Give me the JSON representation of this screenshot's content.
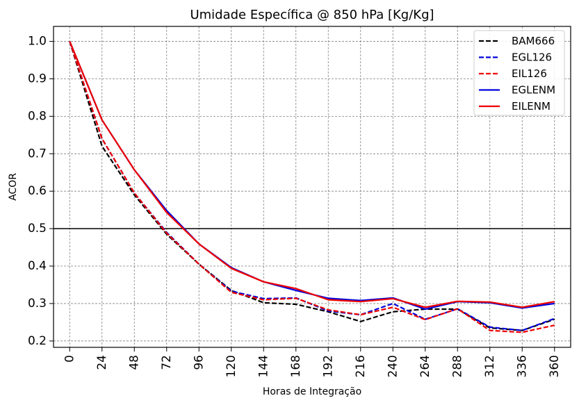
{
  "chart_data": {
    "type": "line",
    "title": "Umidade Específica @ 850 hPa [Kg/Kg]",
    "xlabel": "Horas de Integração",
    "ylabel": "ACOR",
    "x": [
      0,
      24,
      48,
      72,
      96,
      120,
      144,
      168,
      192,
      216,
      240,
      264,
      288,
      312,
      336,
      360
    ],
    "x_tick_labels": [
      "0",
      "24",
      "48",
      "72",
      "96",
      "120",
      "144",
      "168",
      "192",
      "216",
      "240",
      "264",
      "288",
      "312",
      "336",
      "360"
    ],
    "y_ticks": [
      0.2,
      0.3,
      0.4,
      0.5,
      0.6,
      0.7,
      0.8,
      0.9,
      1.0
    ],
    "y_tick_labels": [
      "0.2",
      "0.3",
      "0.4",
      "0.5",
      "0.6",
      "0.7",
      "0.8",
      "0.9",
      "1.0"
    ],
    "xlim": [
      -12,
      372
    ],
    "ylim": [
      0.183,
      1.04
    ],
    "grid": true,
    "reference_line": 0.5,
    "reference_color": "#000000",
    "legend_position": "top-right",
    "series": [
      {
        "name": "BAM666",
        "color": "#000000",
        "dash": "dashed",
        "values": [
          1.0,
          0.72,
          0.59,
          0.485,
          0.405,
          0.335,
          0.302,
          0.298,
          0.278,
          0.252,
          0.278,
          0.285,
          0.285,
          0.235,
          0.228,
          0.258
        ]
      },
      {
        "name": "EGL126",
        "color": "#0000dd",
        "dash": "dashed",
        "values": [
          1.0,
          0.74,
          0.595,
          0.49,
          0.405,
          0.333,
          0.313,
          0.315,
          0.28,
          0.27,
          0.3,
          0.258,
          0.286,
          0.237,
          0.228,
          0.26
        ]
      },
      {
        "name": "EIL126",
        "color": "#ee0000",
        "dash": "dashed",
        "values": [
          1.0,
          0.74,
          0.595,
          0.488,
          0.405,
          0.33,
          0.31,
          0.314,
          0.283,
          0.27,
          0.29,
          0.257,
          0.286,
          0.228,
          0.223,
          0.242
        ]
      },
      {
        "name": "EGLENM",
        "color": "#0000dd",
        "dash": "solid",
        "values": [
          1.0,
          0.79,
          0.657,
          0.548,
          0.459,
          0.396,
          0.358,
          0.335,
          0.314,
          0.308,
          0.315,
          0.285,
          0.305,
          0.302,
          0.288,
          0.3
        ]
      },
      {
        "name": "EILENM",
        "color": "#ee0000",
        "dash": "solid",
        "values": [
          1.0,
          0.79,
          0.657,
          0.543,
          0.459,
          0.394,
          0.358,
          0.34,
          0.31,
          0.305,
          0.313,
          0.29,
          0.306,
          0.304,
          0.29,
          0.305
        ]
      }
    ]
  }
}
